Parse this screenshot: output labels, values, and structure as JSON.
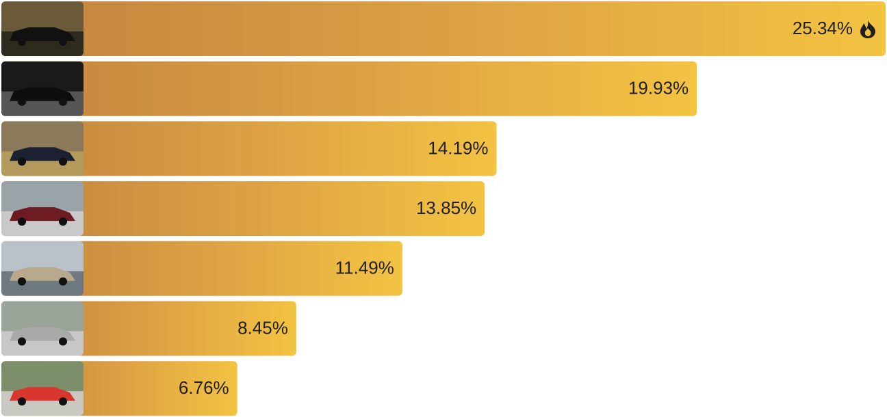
{
  "chart_data": {
    "type": "bar",
    "orientation": "horizontal",
    "categories": [
      null,
      null,
      null,
      null,
      null,
      null,
      null
    ],
    "values": [
      25.34,
      19.93,
      14.19,
      13.85,
      11.49,
      8.45,
      6.76
    ],
    "value_labels": [
      "25.34%",
      "19.93%",
      "14.19%",
      "13.85%",
      "11.49%",
      "8.45%",
      "6.76%"
    ],
    "gradient": [
      "#c1843f",
      "#dca044",
      "#f3c342"
    ]
  }
}
